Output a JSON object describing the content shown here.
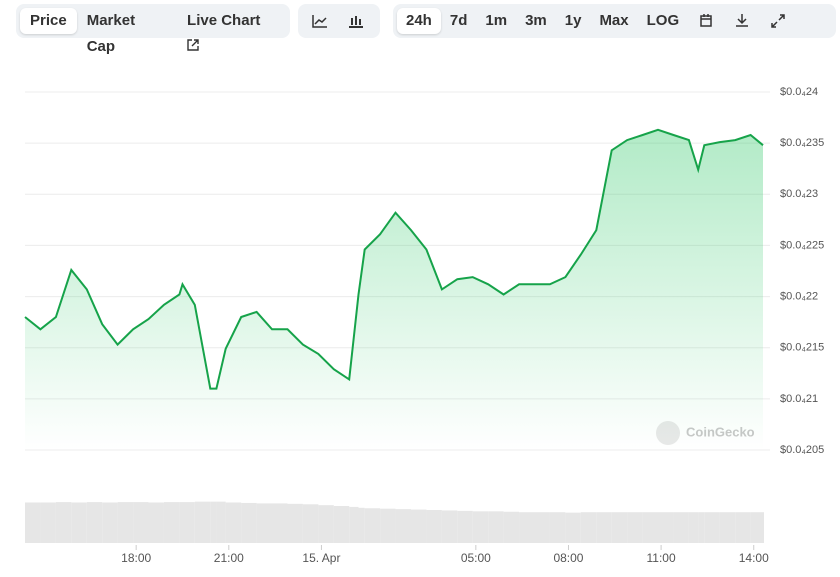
{
  "toolbar": {
    "views": [
      "Price",
      "Market Cap",
      "Live Chart"
    ],
    "active_view": 0,
    "ranges": [
      "24h",
      "7d",
      "1m",
      "3m",
      "1y",
      "Max",
      "LOG"
    ],
    "active_range": 0
  },
  "chart_data": {
    "type": "line",
    "watermark": "CoinGecko",
    "x": [
      14.4,
      14.9,
      15.4,
      15.9,
      16.4,
      16.9,
      17.4,
      17.9,
      18.4,
      18.9,
      19.4,
      19.5,
      19.9,
      20.4,
      20.6,
      20.9,
      21.4,
      21.9,
      22.4,
      22.9,
      23.4,
      23.9,
      24.4,
      24.9,
      25.2,
      25.4,
      25.9,
      26.4,
      26.9,
      27.4,
      27.9,
      28.4,
      28.9,
      29.4,
      29.9,
      30.4,
      30.9,
      31.4,
      31.9,
      32.4,
      32.9,
      33.4,
      33.9,
      34.4,
      34.9,
      35.4,
      35.9,
      36.2,
      36.4,
      36.9,
      37.4,
      37.9,
      38.3
    ],
    "series": [
      {
        "name": "Price",
        "color": "#16a34a",
        "values": [
          2.18e-05,
          2.168e-05,
          2.18e-05,
          2.226e-05,
          2.207e-05,
          2.173e-05,
          2.153e-05,
          2.168e-05,
          2.178e-05,
          2.192e-05,
          2.202e-05,
          2.212e-05,
          2.192e-05,
          2.11e-05,
          2.11e-05,
          2.149e-05,
          2.18e-05,
          2.185e-05,
          2.168e-05,
          2.168e-05,
          2.153e-05,
          2.144e-05,
          2.129e-05,
          2.119e-05,
          2.202e-05,
          2.246e-05,
          2.261e-05,
          2.282e-05,
          2.265e-05,
          2.246e-05,
          2.207e-05,
          2.217e-05,
          2.219e-05,
          2.212e-05,
          2.202e-05,
          2.212e-05,
          2.212e-05,
          2.212e-05,
          2.219e-05,
          2.241e-05,
          2.265e-05,
          2.343e-05,
          2.353e-05,
          2.358e-05,
          2.363e-05,
          2.358e-05,
          2.353e-05,
          2.324e-05,
          2.348e-05,
          2.351e-05,
          2.353e-05,
          2.358e-05,
          2.348e-05
        ]
      }
    ],
    "volume": [
      92,
      92,
      93,
      92,
      93,
      92,
      93,
      93,
      92,
      93,
      93,
      93,
      94,
      94,
      94,
      92,
      91,
      90,
      90,
      89,
      88,
      86,
      84,
      82,
      80,
      79,
      78,
      77,
      76,
      75,
      74,
      73,
      72,
      72,
      71,
      70,
      70,
      70,
      69,
      70,
      70,
      70,
      70,
      70,
      70,
      70,
      70,
      70,
      70,
      70,
      70,
      70,
      70
    ],
    "volume_lim": [
      0,
      100
    ],
    "xlim": [
      14.4,
      38.3
    ],
    "xticks": [
      {
        "value": 18,
        "label": "18:00"
      },
      {
        "value": 21,
        "label": "21:00"
      },
      {
        "value": 24,
        "label": "15. Apr"
      },
      {
        "value": 29,
        "label": "05:00"
      },
      {
        "value": 32,
        "label": "08:00"
      },
      {
        "value": 35,
        "label": "11:00"
      },
      {
        "value": 38,
        "label": "14:00"
      }
    ],
    "ylim": [
      2.05e-05,
      2.4e-05
    ],
    "yticks": [
      {
        "value": 2.05e-05,
        "label": "$0.0₄205"
      },
      {
        "value": 2.1e-05,
        "label": "$0.0₄21"
      },
      {
        "value": 2.15e-05,
        "label": "$0.0₄215"
      },
      {
        "value": 2.2e-05,
        "label": "$0.0₄22"
      },
      {
        "value": 2.25e-05,
        "label": "$0.0₄225"
      },
      {
        "value": 2.3e-05,
        "label": "$0.0₄23"
      },
      {
        "value": 2.35e-05,
        "label": "$0.0₄235"
      },
      {
        "value": 2.4e-05,
        "label": "$0.0₄24"
      }
    ],
    "grid": true
  }
}
